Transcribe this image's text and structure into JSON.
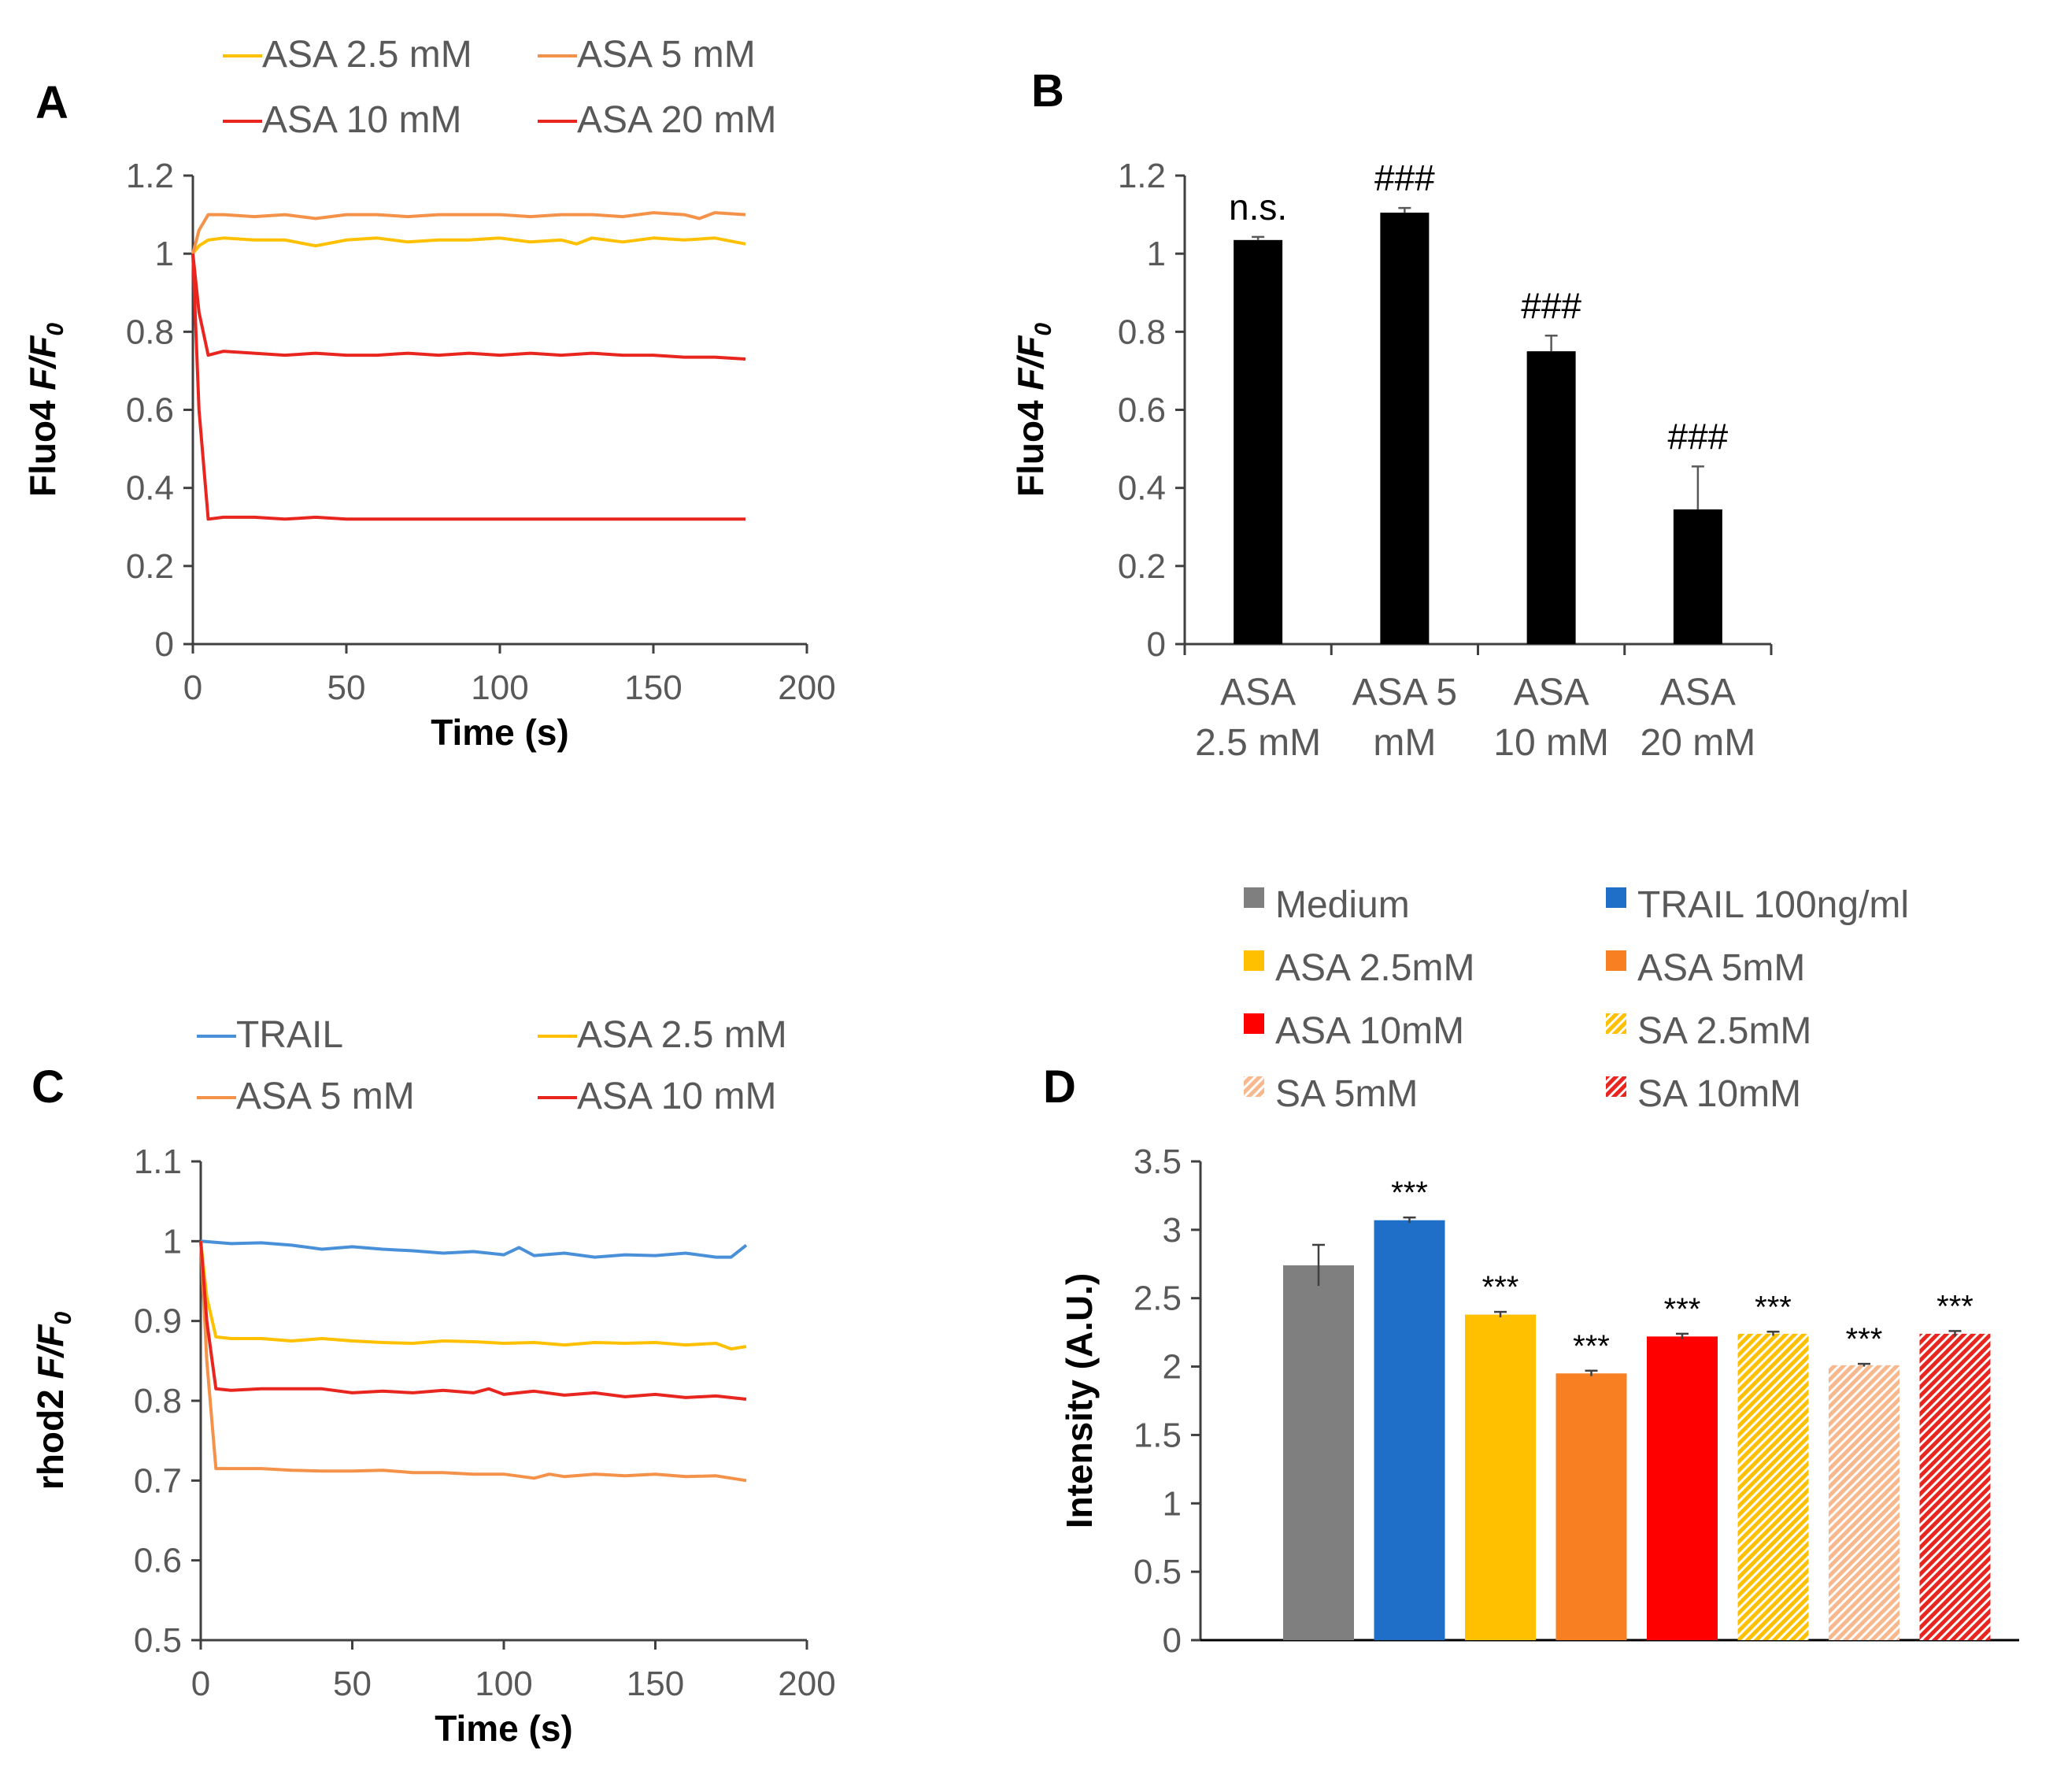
{
  "chart_data": [
    {
      "panel": "A",
      "type": "line",
      "xlabel": "Time (s)",
      "ylabel_prefix": "Fluo4 ",
      "ylabel_italic": "F/F",
      "ylabel_sub": "0",
      "xlim": [
        0,
        200
      ],
      "ylim": [
        0,
        1.2
      ],
      "xticks": [
        0,
        50,
        100,
        150,
        200
      ],
      "yticks": [
        0,
        0.2,
        0.4,
        0.6,
        0.8,
        1,
        1.2
      ],
      "legend_position": "top",
      "series": [
        {
          "name": "ASA 2.5 mM",
          "color": "#FFC000",
          "points": [
            [
              0,
              1.0
            ],
            [
              2,
              1.02
            ],
            [
              5,
              1.035
            ],
            [
              10,
              1.04
            ],
            [
              20,
              1.035
            ],
            [
              30,
              1.035
            ],
            [
              40,
              1.02
            ],
            [
              50,
              1.035
            ],
            [
              60,
              1.04
            ],
            [
              70,
              1.03
            ],
            [
              80,
              1.035
            ],
            [
              90,
              1.035
            ],
            [
              100,
              1.04
            ],
            [
              110,
              1.03
            ],
            [
              120,
              1.035
            ],
            [
              125,
              1.025
            ],
            [
              130,
              1.04
            ],
            [
              140,
              1.03
            ],
            [
              150,
              1.04
            ],
            [
              160,
              1.035
            ],
            [
              170,
              1.04
            ],
            [
              180,
              1.025
            ]
          ]
        },
        {
          "name": "ASA 5 mM",
          "color": "#F4924A",
          "points": [
            [
              0,
              1.0
            ],
            [
              2,
              1.06
            ],
            [
              5,
              1.1
            ],
            [
              10,
              1.1
            ],
            [
              20,
              1.095
            ],
            [
              30,
              1.1
            ],
            [
              40,
              1.09
            ],
            [
              50,
              1.1
            ],
            [
              60,
              1.1
            ],
            [
              70,
              1.095
            ],
            [
              80,
              1.1
            ],
            [
              90,
              1.1
            ],
            [
              100,
              1.1
            ],
            [
              110,
              1.095
            ],
            [
              120,
              1.1
            ],
            [
              130,
              1.1
            ],
            [
              140,
              1.095
            ],
            [
              150,
              1.105
            ],
            [
              160,
              1.1
            ],
            [
              165,
              1.09
            ],
            [
              170,
              1.105
            ],
            [
              180,
              1.1
            ]
          ]
        },
        {
          "name": "ASA 10 mM",
          "color": "#E8251F",
          "points": [
            [
              0,
              1.0
            ],
            [
              2,
              0.85
            ],
            [
              5,
              0.74
            ],
            [
              10,
              0.75
            ],
            [
              20,
              0.745
            ],
            [
              30,
              0.74
            ],
            [
              40,
              0.745
            ],
            [
              50,
              0.74
            ],
            [
              60,
              0.74
            ],
            [
              70,
              0.745
            ],
            [
              80,
              0.74
            ],
            [
              90,
              0.745
            ],
            [
              100,
              0.74
            ],
            [
              110,
              0.745
            ],
            [
              120,
              0.74
            ],
            [
              130,
              0.745
            ],
            [
              140,
              0.74
            ],
            [
              150,
              0.74
            ],
            [
              160,
              0.735
            ],
            [
              170,
              0.735
            ],
            [
              180,
              0.73
            ]
          ]
        },
        {
          "name": "ASA 20 mM",
          "color": "#E8251F",
          "points": [
            [
              0,
              1.0
            ],
            [
              2,
              0.6
            ],
            [
              5,
              0.32
            ],
            [
              10,
              0.325
            ],
            [
              20,
              0.325
            ],
            [
              30,
              0.32
            ],
            [
              40,
              0.325
            ],
            [
              50,
              0.32
            ],
            [
              60,
              0.32
            ],
            [
              70,
              0.32
            ],
            [
              80,
              0.32
            ],
            [
              90,
              0.32
            ],
            [
              100,
              0.32
            ],
            [
              110,
              0.32
            ],
            [
              120,
              0.32
            ],
            [
              130,
              0.32
            ],
            [
              140,
              0.32
            ],
            [
              150,
              0.32
            ],
            [
              160,
              0.32
            ],
            [
              170,
              0.32
            ],
            [
              180,
              0.32
            ]
          ]
        }
      ]
    },
    {
      "panel": "B",
      "type": "bar",
      "ylabel_prefix": "Fluo4 ",
      "ylabel_italic": "F/F",
      "ylabel_sub": "0",
      "ylim": [
        0,
        1.2
      ],
      "yticks": [
        0,
        0.2,
        0.4,
        0.6,
        0.8,
        1,
        1.2
      ],
      "categories": [
        [
          "ASA",
          "2.5 mM"
        ],
        [
          "ASA 5",
          "mM"
        ],
        [
          "ASA",
          "10 mM"
        ],
        [
          "ASA",
          "20 mM"
        ]
      ],
      "values": [
        1.035,
        1.105,
        0.75,
        0.345
      ],
      "errors": [
        0.008,
        0.012,
        0.04,
        0.11
      ],
      "labels": [
        "n.s.",
        "###",
        "###",
        "###"
      ],
      "bar_color": "#000000"
    },
    {
      "panel": "C",
      "type": "line",
      "xlabel": "Time (s)",
      "ylabel_prefix": "rhod2 ",
      "ylabel_italic": "F/F",
      "ylabel_sub": "0",
      "xlim": [
        0,
        200
      ],
      "ylim": [
        0.5,
        1.1
      ],
      "xticks": [
        0,
        50,
        100,
        150,
        200
      ],
      "yticks": [
        0.5,
        0.6,
        0.7,
        0.8,
        0.9,
        1,
        1.1
      ],
      "legend_position": "top",
      "series": [
        {
          "name": "TRAIL",
          "color": "#4A90D9",
          "points": [
            [
              0,
              1.0
            ],
            [
              10,
              0.997
            ],
            [
              20,
              0.998
            ],
            [
              30,
              0.995
            ],
            [
              40,
              0.99
            ],
            [
              50,
              0.993
            ],
            [
              60,
              0.99
            ],
            [
              70,
              0.988
            ],
            [
              80,
              0.985
            ],
            [
              90,
              0.987
            ],
            [
              100,
              0.983
            ],
            [
              105,
              0.992
            ],
            [
              110,
              0.982
            ],
            [
              120,
              0.985
            ],
            [
              130,
              0.98
            ],
            [
              140,
              0.983
            ],
            [
              150,
              0.982
            ],
            [
              160,
              0.985
            ],
            [
              170,
              0.98
            ],
            [
              175,
              0.98
            ],
            [
              180,
              0.995
            ]
          ]
        },
        {
          "name": "ASA 2.5 mM",
          "color": "#FFC000",
          "points": [
            [
              0,
              1.0
            ],
            [
              2,
              0.93
            ],
            [
              5,
              0.88
            ],
            [
              10,
              0.878
            ],
            [
              20,
              0.878
            ],
            [
              30,
              0.875
            ],
            [
              40,
              0.878
            ],
            [
              50,
              0.875
            ],
            [
              60,
              0.873
            ],
            [
              70,
              0.872
            ],
            [
              80,
              0.875
            ],
            [
              90,
              0.874
            ],
            [
              100,
              0.872
            ],
            [
              110,
              0.873
            ],
            [
              120,
              0.87
            ],
            [
              130,
              0.873
            ],
            [
              140,
              0.872
            ],
            [
              150,
              0.873
            ],
            [
              160,
              0.87
            ],
            [
              170,
              0.872
            ],
            [
              175,
              0.865
            ],
            [
              180,
              0.868
            ]
          ]
        },
        {
          "name": "ASA 5 mM",
          "color": "#F4924A",
          "points": [
            [
              0,
              1.0
            ],
            [
              2,
              0.85
            ],
            [
              5,
              0.715
            ],
            [
              10,
              0.715
            ],
            [
              20,
              0.715
            ],
            [
              30,
              0.713
            ],
            [
              40,
              0.712
            ],
            [
              50,
              0.712
            ],
            [
              60,
              0.713
            ],
            [
              70,
              0.71
            ],
            [
              80,
              0.71
            ],
            [
              90,
              0.708
            ],
            [
              100,
              0.708
            ],
            [
              110,
              0.703
            ],
            [
              115,
              0.708
            ],
            [
              120,
              0.705
            ],
            [
              130,
              0.708
            ],
            [
              140,
              0.706
            ],
            [
              150,
              0.708
            ],
            [
              160,
              0.705
            ],
            [
              170,
              0.706
            ],
            [
              180,
              0.7
            ]
          ]
        },
        {
          "name": "ASA 10 mM",
          "color": "#E8251F",
          "points": [
            [
              0,
              1.0
            ],
            [
              2,
              0.9
            ],
            [
              5,
              0.815
            ],
            [
              10,
              0.813
            ],
            [
              20,
              0.815
            ],
            [
              30,
              0.815
            ],
            [
              40,
              0.815
            ],
            [
              50,
              0.81
            ],
            [
              60,
              0.812
            ],
            [
              70,
              0.81
            ],
            [
              80,
              0.813
            ],
            [
              90,
              0.81
            ],
            [
              95,
              0.815
            ],
            [
              100,
              0.808
            ],
            [
              110,
              0.812
            ],
            [
              120,
              0.807
            ],
            [
              130,
              0.81
            ],
            [
              140,
              0.805
            ],
            [
              150,
              0.808
            ],
            [
              160,
              0.804
            ],
            [
              170,
              0.806
            ],
            [
              180,
              0.802
            ]
          ]
        }
      ]
    },
    {
      "panel": "D",
      "type": "bar",
      "ylabel": "Intensity (A.U.)",
      "ylim": [
        0,
        3.5
      ],
      "yticks": [
        0,
        0.5,
        1,
        1.5,
        2,
        2.5,
        3,
        3.5
      ],
      "categories": [
        "Medium",
        "TRAIL 100ng/ml",
        "ASA 2.5mM",
        "ASA 5mM",
        "ASA 10mM",
        "SA 2.5mM",
        "SA 5mM",
        "SA 10mM"
      ],
      "values": [
        2.74,
        3.07,
        2.38,
        1.95,
        2.22,
        2.24,
        2.01,
        2.24
      ],
      "errors": [
        0.15,
        0.02,
        0.02,
        0.02,
        0.02,
        0.015,
        0.01,
        0.02
      ],
      "labels": [
        "",
        "***",
        "***",
        "***",
        "***",
        "***",
        "***",
        "***"
      ],
      "colors": [
        "#7F7F7F",
        "#1F6FC8",
        "#FFC000",
        "#F88022",
        "#FF0000",
        "#FFC000",
        "#F8B88E",
        "#E8251F"
      ],
      "hatched": [
        false,
        false,
        false,
        false,
        false,
        true,
        true,
        true
      ],
      "legend_columns": 2,
      "legend_display_order": [
        0,
        1,
        2,
        3,
        4,
        5,
        6,
        7
      ],
      "legend_position": "top"
    }
  ]
}
